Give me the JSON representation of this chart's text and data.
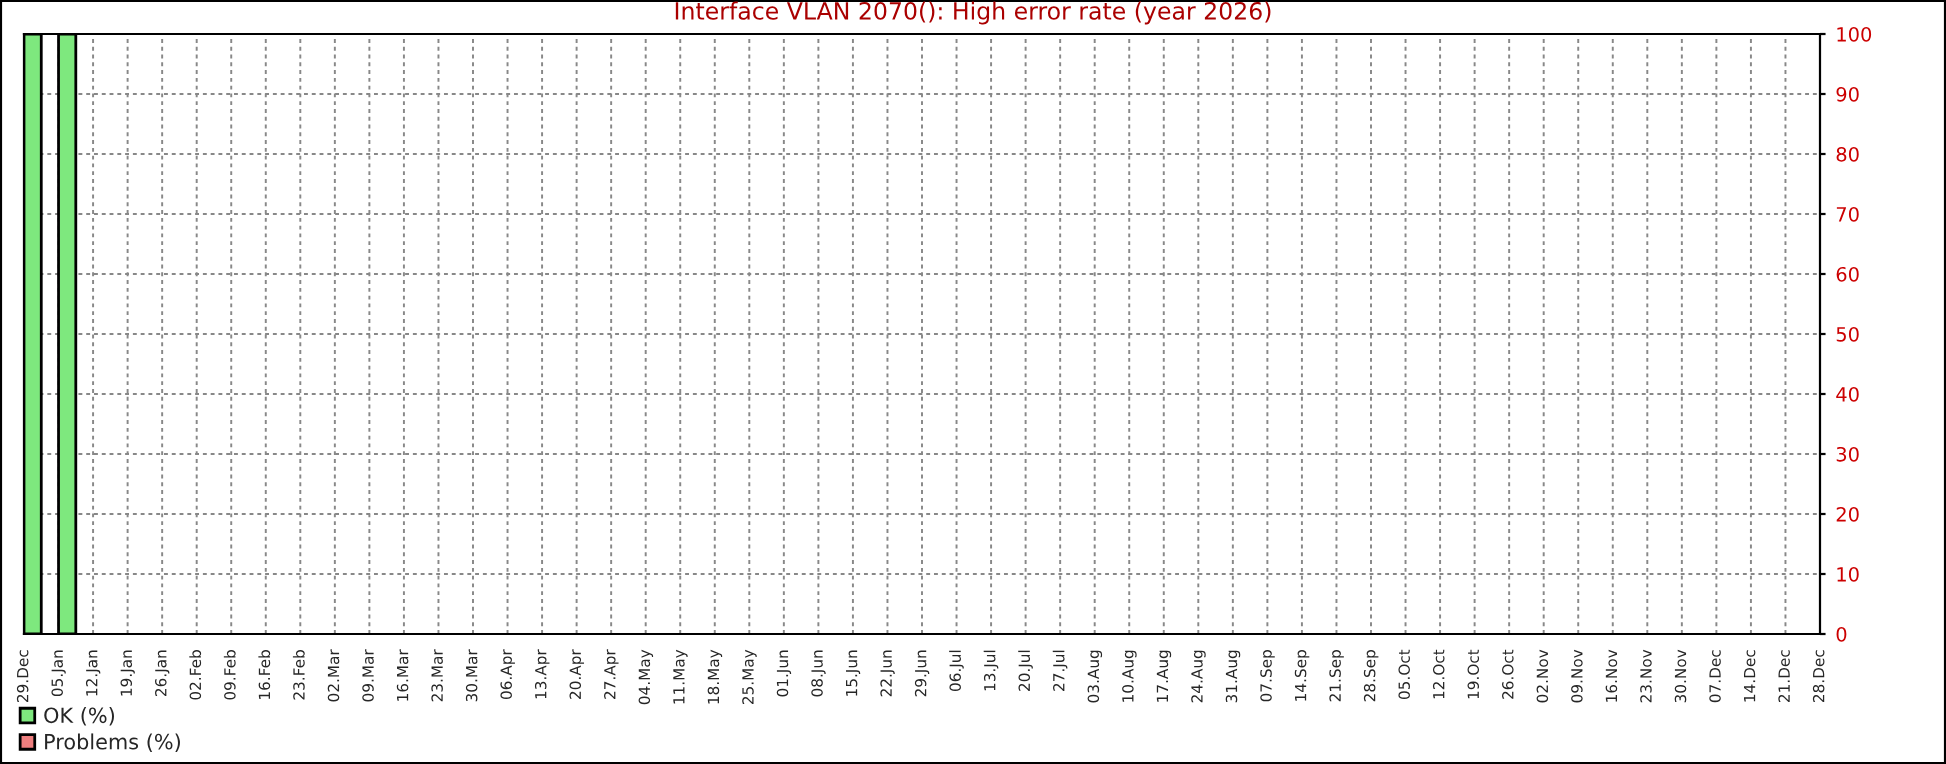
{
  "chart_data": {
    "type": "bar",
    "title": "Interface VLAN 2070(): High error rate (year 2026)",
    "xlim": [
      "2025-12-29",
      "2026-12-28"
    ],
    "xticks": [
      {
        "value": "2025-12-29",
        "label": "29.Dec"
      },
      {
        "value": "2026-01-05",
        "label": "05.Jan"
      },
      {
        "value": "2026-01-12",
        "label": "12.Jan"
      },
      {
        "value": "2026-01-19",
        "label": "19.Jan"
      },
      {
        "value": "2026-01-26",
        "label": "26.Jan"
      },
      {
        "value": "2026-02-02",
        "label": "02.Feb"
      },
      {
        "value": "2026-02-09",
        "label": "09.Feb"
      },
      {
        "value": "2026-02-16",
        "label": "16.Feb"
      },
      {
        "value": "2026-02-23",
        "label": "23.Feb"
      },
      {
        "value": "2026-03-02",
        "label": "02.Mar"
      },
      {
        "value": "2026-03-09",
        "label": "09.Mar"
      },
      {
        "value": "2026-03-16",
        "label": "16.Mar"
      },
      {
        "value": "2026-03-23",
        "label": "23.Mar"
      },
      {
        "value": "2026-03-30",
        "label": "30.Mar"
      },
      {
        "value": "2026-04-06",
        "label": "06.Apr"
      },
      {
        "value": "2026-04-13",
        "label": "13.Apr"
      },
      {
        "value": "2026-04-20",
        "label": "20.Apr"
      },
      {
        "value": "2026-04-27",
        "label": "27.Apr"
      },
      {
        "value": "2026-05-04",
        "label": "04.May"
      },
      {
        "value": "2026-05-11",
        "label": "11.May"
      },
      {
        "value": "2026-05-18",
        "label": "18.May"
      },
      {
        "value": "2026-05-25",
        "label": "25.May"
      },
      {
        "value": "2026-06-01",
        "label": "01.Jun"
      },
      {
        "value": "2026-06-08",
        "label": "08.Jun"
      },
      {
        "value": "2026-06-15",
        "label": "15.Jun"
      },
      {
        "value": "2026-06-22",
        "label": "22.Jun"
      },
      {
        "value": "2026-06-29",
        "label": "29.Jun"
      },
      {
        "value": "2026-07-06",
        "label": "06.Jul"
      },
      {
        "value": "2026-07-13",
        "label": "13.Jul"
      },
      {
        "value": "2026-07-20",
        "label": "20.Jul"
      },
      {
        "value": "2026-07-27",
        "label": "27.Jul"
      },
      {
        "value": "2026-08-03",
        "label": "03.Aug"
      },
      {
        "value": "2026-08-10",
        "label": "10.Aug"
      },
      {
        "value": "2026-08-17",
        "label": "17.Aug"
      },
      {
        "value": "2026-08-24",
        "label": "24.Aug"
      },
      {
        "value": "2026-08-31",
        "label": "31.Aug"
      },
      {
        "value": "2026-09-07",
        "label": "07.Sep"
      },
      {
        "value": "2026-09-14",
        "label": "14.Sep"
      },
      {
        "value": "2026-09-21",
        "label": "21.Sep"
      },
      {
        "value": "2026-09-28",
        "label": "28.Sep"
      },
      {
        "value": "2026-10-05",
        "label": "05.Oct"
      },
      {
        "value": "2026-10-12",
        "label": "12.Oct"
      },
      {
        "value": "2026-10-19",
        "label": "19.Oct"
      },
      {
        "value": "2026-10-26",
        "label": "26.Oct"
      },
      {
        "value": "2026-11-02",
        "label": "02.Nov"
      },
      {
        "value": "2026-11-09",
        "label": "09.Nov"
      },
      {
        "value": "2026-11-16",
        "label": "16.Nov"
      },
      {
        "value": "2026-11-23",
        "label": "23.Nov"
      },
      {
        "value": "2026-11-30",
        "label": "30.Nov"
      },
      {
        "value": "2026-12-07",
        "label": "07.Dec"
      },
      {
        "value": "2026-12-14",
        "label": "14.Dec"
      },
      {
        "value": "2026-12-21",
        "label": "21.Dec"
      },
      {
        "value": "2026-12-28",
        "label": "28.Dec"
      }
    ],
    "ylim": [
      0,
      100
    ],
    "yticks": [
      0,
      10,
      20,
      30,
      40,
      50,
      60,
      70,
      80,
      90,
      100
    ],
    "grid": true,
    "legend": "bottom left",
    "series": [
      {
        "name": "OK (%)",
        "color": "#7ee87e",
        "x": [
          "2025-12-29",
          "2026-01-05"
        ],
        "values": [
          100,
          100
        ]
      },
      {
        "name": "Problems (%)",
        "color": "#ee7f7f"
      }
    ]
  }
}
